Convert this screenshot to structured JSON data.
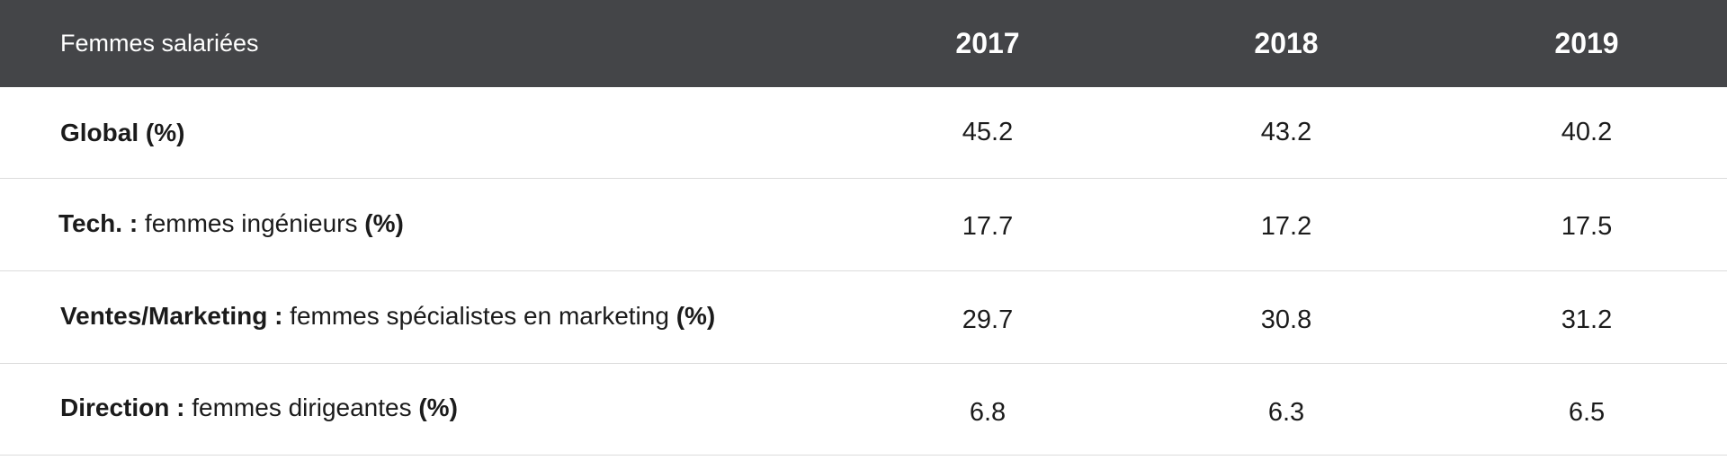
{
  "table": {
    "header": {
      "label": "Femmes salariées",
      "years": [
        "2017",
        "2018",
        "2019"
      ]
    },
    "rows": [
      {
        "bold_prefix": "Global (%)",
        "text": "",
        "bold_suffix": "",
        "values": [
          "45.2",
          "43.2",
          "40.2"
        ]
      },
      {
        "bold_prefix": "Tech. :",
        "text": " femmes ingénieurs ",
        "bold_suffix": "(%)",
        "values": [
          "17.7",
          "17.2",
          "17.5"
        ]
      },
      {
        "bold_prefix": "Ventes/Marketing :",
        "text": " femmes spécialistes en marketing ",
        "bold_suffix": "(%)",
        "values": [
          "29.7",
          "30.8",
          "31.2"
        ]
      },
      {
        "bold_prefix": "Direction :",
        "text": " femmes dirigeantes ",
        "bold_suffix": "(%)",
        "values": [
          "6.8",
          "6.3",
          "6.5"
        ]
      }
    ]
  }
}
